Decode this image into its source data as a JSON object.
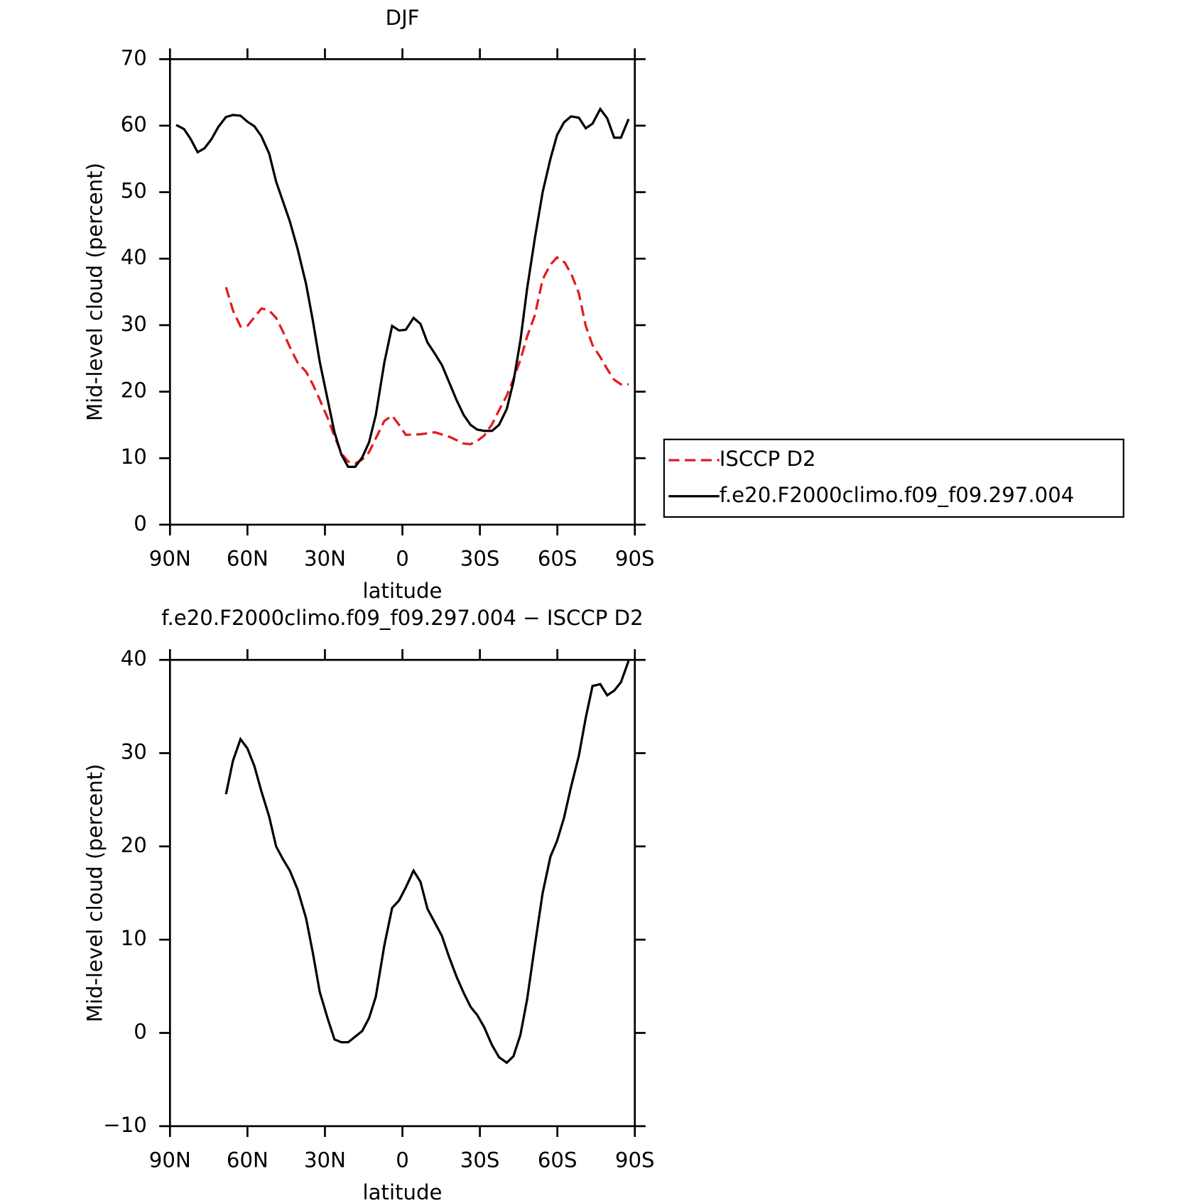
{
  "chart_data": [
    {
      "type": "line",
      "title": "DJF",
      "xlabel": "latitude",
      "ylabel": "Mid-level cloud (percent)",
      "xlim": [
        90,
        -90
      ],
      "xticks": [
        {
          "value": 90,
          "label": "90N"
        },
        {
          "value": 60,
          "label": "60N"
        },
        {
          "value": 30,
          "label": "30N"
        },
        0,
        {
          "value": -30,
          "label": "30S"
        },
        {
          "value": -60,
          "label": "60S"
        },
        {
          "value": -90,
          "label": "90S"
        }
      ],
      "ylim": [
        0,
        70
      ],
      "yticks": [
        0,
        10,
        20,
        30,
        40,
        50,
        60,
        70
      ],
      "legend": "right",
      "series": [
        {
          "name": "ISCCP D2",
          "color": "#e41a1c",
          "dash": "dashed",
          "x": [
            68.3,
            65.6,
            62.7,
            60.0,
            57.3,
            54.6,
            51.6,
            48.9,
            46.2,
            43.6,
            40.6,
            37.3,
            34.7,
            32.0,
            29.0,
            26.3,
            23.6,
            21.0,
            18.3,
            15.6,
            12.9,
            10.3,
            7.0,
            4.0,
            1.3,
            -1.3,
            -7.0,
            -12.6,
            -18.3,
            -23.7,
            -26.4,
            -29.0,
            -31.7,
            -34.7,
            -37.4,
            -40.4,
            -43.0,
            -45.7,
            -48.3,
            -51.3,
            -54.3,
            -57.3,
            -59.9,
            -62.9,
            -65.6,
            -68.3,
            -71.0,
            -73.6,
            -76.6,
            -79.3,
            -82.0,
            -84.6,
            -87.6
          ],
          "values": [
            35.7,
            32.2,
            29.8,
            29.9,
            31.2,
            32.5,
            32.2,
            31.1,
            29.0,
            26.7,
            24.4,
            23.0,
            21.1,
            18.8,
            16.1,
            13.3,
            10.7,
            9.5,
            9.2,
            9.8,
            10.9,
            13.0,
            15.6,
            16.4,
            15.0,
            13.5,
            13.6,
            13.9,
            13.2,
            12.2,
            12.1,
            12.6,
            13.4,
            15.1,
            17.2,
            19.4,
            21.9,
            24.8,
            28.3,
            31.5,
            36.9,
            39.1,
            40.2,
            39.4,
            37.5,
            34.8,
            29.9,
            27.0,
            25.2,
            23.4,
            21.8,
            21.1,
            21.1
          ]
        },
        {
          "name": "f.e20.F2000climo.f09_f09.297.004",
          "color": "#000000",
          "dash": "solid",
          "x": [
            87.6,
            84.6,
            82.0,
            79.3,
            76.6,
            73.9,
            71.3,
            68.3,
            65.6,
            62.7,
            60.0,
            57.3,
            54.6,
            51.6,
            48.9,
            43.6,
            40.6,
            37.3,
            34.7,
            32.0,
            29.0,
            26.3,
            23.6,
            21.0,
            18.3,
            15.6,
            12.9,
            10.3,
            7.0,
            4.0,
            1.3,
            -1.3,
            -4.3,
            -7.0,
            -9.7,
            -12.4,
            -15.3,
            -18.0,
            -21.0,
            -23.7,
            -26.4,
            -29.0,
            -31.7,
            -34.7,
            -37.4,
            -40.4,
            -43.0,
            -45.7,
            -48.3,
            -51.3,
            -54.3,
            -57.3,
            -59.9,
            -62.6,
            -65.3,
            -68.3,
            -71.0,
            -73.6,
            -76.6,
            -79.3,
            -82.0,
            -84.6,
            -87.6
          ],
          "values": [
            60.1,
            59.5,
            58.0,
            56.0,
            56.6,
            58.0,
            59.8,
            61.3,
            61.6,
            61.5,
            60.6,
            59.9,
            58.4,
            55.8,
            51.6,
            45.6,
            41.5,
            36.2,
            30.7,
            24.5,
            18.9,
            13.9,
            10.5,
            8.7,
            8.7,
            10.1,
            12.4,
            16.5,
            24.4,
            29.9,
            29.2,
            29.3,
            31.1,
            30.2,
            27.4,
            25.8,
            24.0,
            21.5,
            18.7,
            16.5,
            15.0,
            14.3,
            14.1,
            14.1,
            15.0,
            17.4,
            21.5,
            27.7,
            35.5,
            43.1,
            50.0,
            55.0,
            58.6,
            60.5,
            61.4,
            61.2,
            59.6,
            60.3,
            62.5,
            61.1,
            58.2,
            58.2,
            61.0
          ]
        }
      ]
    },
    {
      "type": "line",
      "title": "f.e20.F2000climo.f09_f09.297.004 − ISCCP D2",
      "xlabel": "latitude",
      "ylabel": "Mid-level cloud (percent)",
      "xlim": [
        90,
        -90
      ],
      "xticks": [
        {
          "value": 90,
          "label": "90N"
        },
        {
          "value": 60,
          "label": "60N"
        },
        {
          "value": 30,
          "label": "30N"
        },
        0,
        {
          "value": -30,
          "label": "30S"
        },
        {
          "value": -60,
          "label": "60S"
        },
        {
          "value": -90,
          "label": "90S"
        }
      ],
      "ylim": [
        -10,
        40
      ],
      "yticks": [
        {
          "value": -10,
          "label": "−10"
        },
        0,
        10,
        20,
        30,
        40
      ],
      "series": [
        {
          "color": "#000000",
          "dash": "solid",
          "x": [
            68.3,
            65.6,
            62.7,
            60.0,
            57.3,
            54.6,
            51.6,
            48.9,
            46.2,
            43.6,
            40.6,
            37.3,
            34.7,
            32.0,
            29.0,
            26.3,
            23.6,
            21.0,
            18.3,
            15.6,
            12.9,
            10.3,
            7.0,
            4.0,
            1.3,
            -1.3,
            -4.3,
            -7.0,
            -9.7,
            -12.4,
            -15.3,
            -18.0,
            -21.0,
            -23.7,
            -26.4,
            -29.0,
            -31.7,
            -34.7,
            -37.4,
            -40.4,
            -43.0,
            -45.7,
            -48.3,
            -51.3,
            -54.3,
            -57.3,
            -59.9,
            -62.6,
            -65.3,
            -68.3,
            -71.0,
            -73.6,
            -76.6,
            -79.3,
            -82.0,
            -84.6,
            -87.6
          ],
          "values": [
            25.6,
            29.2,
            31.5,
            30.5,
            28.6,
            25.9,
            23.2,
            20.0,
            18.6,
            17.4,
            15.4,
            12.3,
            8.6,
            4.4,
            1.6,
            -0.7,
            -1.0,
            -1.0,
            -0.4,
            0.2,
            1.6,
            3.9,
            9.4,
            13.4,
            14.2,
            15.6,
            17.4,
            16.2,
            13.3,
            11.9,
            10.4,
            8.2,
            6.0,
            4.3,
            2.8,
            1.9,
            0.6,
            -1.3,
            -2.6,
            -3.2,
            -2.5,
            -0.2,
            3.6,
            9.4,
            15.0,
            18.9,
            20.6,
            23.1,
            26.4,
            29.7,
            33.8,
            37.2,
            37.4,
            36.2,
            36.7,
            37.6,
            39.9
          ]
        }
      ]
    }
  ]
}
